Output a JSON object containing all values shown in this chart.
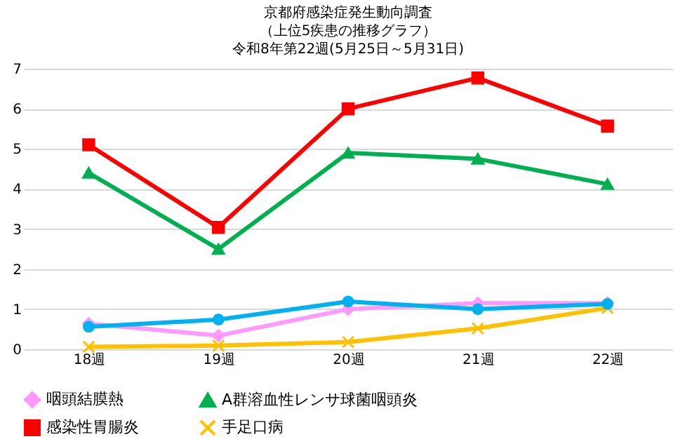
{
  "chart_data": {
    "type": "line",
    "title": [
      "京都府感染症発生動向調査",
      "（上位5疾患の推移グラフ）",
      "令和8年第22週(5月25日～5月31日)"
    ],
    "categories": [
      "18週",
      "19週",
      "20週",
      "21週",
      "22週"
    ],
    "ylim": [
      0,
      7
    ],
    "yticks": [
      0,
      1,
      2,
      3,
      4,
      5,
      6,
      7
    ],
    "grid": "y",
    "legend": "bottom",
    "line_style": "solid",
    "series": [
      {
        "name": "咽頭結膜熱",
        "color": "#ff99ff",
        "marker": "diamond",
        "values": [
          0.64,
          0.34,
          1.0,
          1.15,
          1.15
        ]
      },
      {
        "name": "A群溶血性レンサ球菌咽頭炎",
        "color": "#00b050",
        "marker": "triangle",
        "values": [
          4.4,
          2.5,
          4.9,
          4.75,
          4.12
        ]
      },
      {
        "name": "感染性胃腸炎",
        "color": "#ff0000",
        "marker": "square",
        "values": [
          5.1,
          3.04,
          6.0,
          6.77,
          5.57
        ]
      },
      {
        "name": "手足口病",
        "color": "#ffc000",
        "marker": "cross",
        "values": [
          0.06,
          0.09,
          0.18,
          0.52,
          1.03
        ]
      },
      {
        "color": "#00b0f0",
        "marker": "circle",
        "values": [
          0.56,
          0.74,
          1.19,
          1.0,
          1.13
        ]
      }
    ]
  }
}
